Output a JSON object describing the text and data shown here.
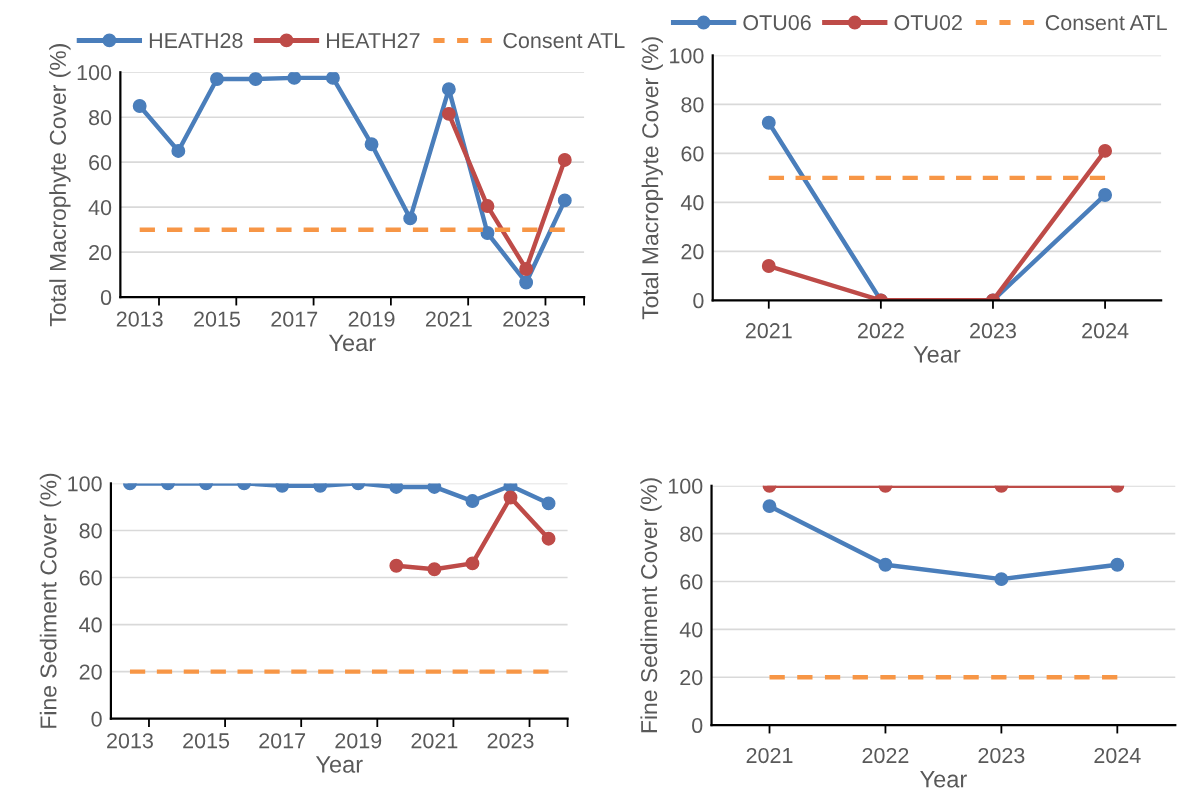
{
  "chart_data": [
    {
      "type": "line",
      "xlabel": "Year",
      "ylabel": "Total Macrophyte Cover (%)",
      "categories": [
        "2013",
        null,
        "2015",
        null,
        "2017",
        null,
        "2019",
        null,
        "2021",
        null,
        "2023",
        null
      ],
      "ylim": [
        0,
        100
      ],
      "yticks": [
        0,
        20,
        40,
        60,
        80,
        100
      ],
      "grid": "y",
      "legend": "top",
      "marker": "circle",
      "series": [
        {
          "name": "HEATH28",
          "color": "#4a7ebb",
          "values": [
            85,
            65,
            97,
            97,
            97.5,
            97.5,
            68,
            35,
            92.5,
            28.5,
            6.5,
            43
          ]
        },
        {
          "name": "HEATH27",
          "color": "#be4b48",
          "values": [
            null,
            null,
            null,
            null,
            null,
            null,
            null,
            null,
            81.5,
            40.5,
            12.5,
            61
          ]
        },
        {
          "name": "Consent ATL",
          "color": "#f79646",
          "marker": "none",
          "line_style": "dashed",
          "values": [
            30,
            30,
            30,
            30,
            30,
            30,
            30,
            30,
            30,
            30,
            30,
            30
          ]
        }
      ]
    },
    {
      "type": "line",
      "xlabel": "Year",
      "ylabel": "Total Macrophyte Cover (%)",
      "categories": [
        "2021",
        "2022",
        "2023",
        "2024"
      ],
      "ylim": [
        0,
        100
      ],
      "yticks": [
        0,
        20,
        40,
        60,
        80,
        100
      ],
      "grid": "y",
      "legend": "top",
      "marker": "circle",
      "series": [
        {
          "name": "OTU06",
          "color": "#4a7ebb",
          "values": [
            72.5,
            0,
            0,
            43
          ]
        },
        {
          "name": "OTU02",
          "color": "#be4b48",
          "values": [
            14,
            0,
            0,
            61
          ]
        },
        {
          "name": "Consent ATL",
          "color": "#f79646",
          "marker": "none",
          "line_style": "dashed",
          "values": [
            50,
            50,
            50,
            50
          ]
        }
      ]
    },
    {
      "type": "line",
      "xlabel": "Year",
      "ylabel": "Fine Sediment Cover (%)",
      "categories": [
        "2013",
        null,
        "2015",
        null,
        "2017",
        null,
        "2019",
        null,
        "2021",
        null,
        "2023",
        null
      ],
      "ylim": [
        0,
        100
      ],
      "yticks": [
        0,
        20,
        40,
        60,
        80,
        100
      ],
      "grid": "y",
      "marker": "circle",
      "series": [
        {
          "color": "#4a7ebb",
          "values": [
            100,
            100,
            100,
            100,
            99,
            99,
            100,
            98.5,
            98.5,
            92.5,
            99,
            91.5
          ]
        },
        {
          "color": "#be4b48",
          "values": [
            null,
            null,
            null,
            null,
            null,
            null,
            null,
            65,
            63.5,
            66,
            94,
            76.5
          ]
        },
        {
          "color": "#f79646",
          "marker": "none",
          "line_style": "dashed",
          "values": [
            20,
            20,
            20,
            20,
            20,
            20,
            20,
            20,
            20,
            20,
            20,
            20
          ]
        }
      ]
    },
    {
      "type": "line",
      "xlabel": "Year",
      "ylabel": "Fine Sediment Cover (%)",
      "categories": [
        "2021",
        "2022",
        "2023",
        "2024"
      ],
      "ylim": [
        0,
        100
      ],
      "yticks": [
        0,
        20,
        40,
        60,
        80,
        100
      ],
      "grid": "y",
      "marker": "circle",
      "series": [
        {
          "color": "#be4b48",
          "values": [
            100,
            100,
            100,
            100
          ]
        },
        {
          "color": "#4a7ebb",
          "values": [
            91.5,
            67,
            61,
            67
          ]
        },
        {
          "color": "#f79646",
          "marker": "none",
          "line_style": "dashed",
          "values": [
            20,
            20,
            20,
            20
          ]
        }
      ]
    }
  ]
}
